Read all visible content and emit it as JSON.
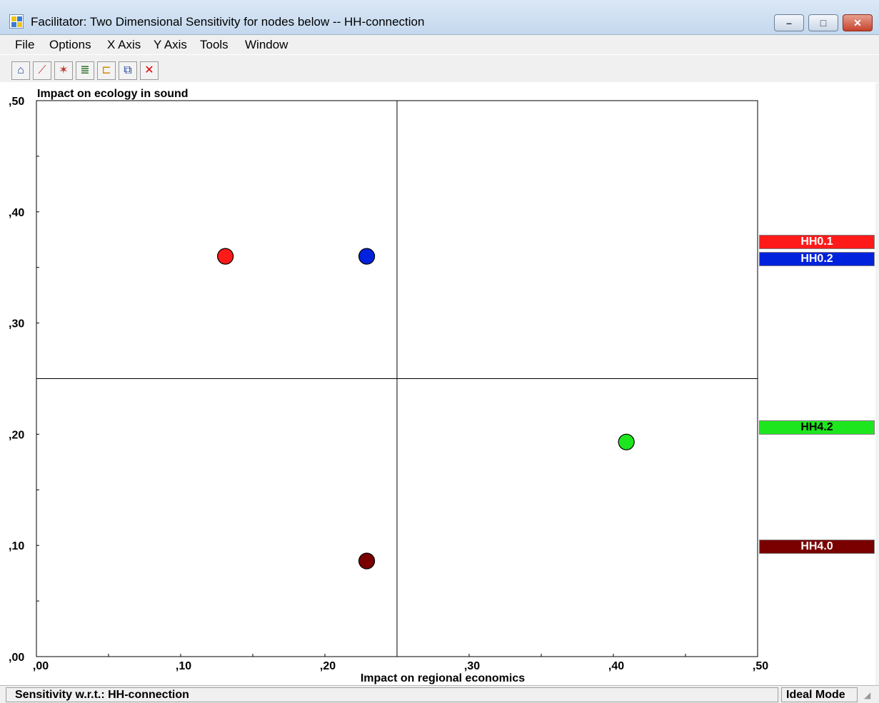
{
  "window": {
    "title": "Facilitator: Two Dimensional  Sensitivity for nodes below -- HH-connection",
    "minimize_glyph": "–",
    "maximize_glyph": "□",
    "close_glyph": "✕"
  },
  "menu": {
    "items": [
      "File",
      "Options",
      "X Axis",
      "Y Axis",
      "Tools",
      "Window"
    ]
  },
  "toolbar": {
    "tools": [
      {
        "name": "home-icon",
        "glyph": "⌂",
        "color": "#1a3fa0"
      },
      {
        "name": "line-graph-icon",
        "glyph": "⟋",
        "color": "#c0392b"
      },
      {
        "name": "crossing-lines-icon",
        "glyph": "✶",
        "color": "#c0392b"
      },
      {
        "name": "stack-icon",
        "glyph": "≣",
        "color": "#2a6f2a"
      },
      {
        "name": "tree-icon",
        "glyph": "⊏",
        "color": "#d08a00"
      },
      {
        "name": "windows-icon",
        "glyph": "⧉",
        "color": "#1a3fa0"
      },
      {
        "name": "close-x-icon",
        "glyph": "✕",
        "color": "#e00000"
      }
    ]
  },
  "chart_data": {
    "type": "scatter",
    "ylabel": "Impact on ecology in sound",
    "xlabel": "Impact on regional economics",
    "xlim": [
      0,
      0.5
    ],
    "ylim": [
      0,
      0.5
    ],
    "x_ticks": [
      {
        "value": 0.0,
        "label": ",00"
      },
      {
        "value": 0.1,
        "label": ",10"
      },
      {
        "value": 0.2,
        "label": ",20"
      },
      {
        "value": 0.3,
        "label": ",30"
      },
      {
        "value": 0.4,
        "label": ",40"
      },
      {
        "value": 0.5,
        "label": ",50"
      }
    ],
    "y_ticks": [
      {
        "value": 0.0,
        "label": ",00"
      },
      {
        "value": 0.1,
        "label": ",10"
      },
      {
        "value": 0.2,
        "label": ",20"
      },
      {
        "value": 0.3,
        "label": ",30"
      },
      {
        "value": 0.4,
        "label": ",40"
      },
      {
        "value": 0.5,
        "label": ",50"
      }
    ],
    "quadrant_dividers": {
      "x": 0.25,
      "y": 0.25
    },
    "series": [
      {
        "name": "HH0.1",
        "x": 0.131,
        "y": 0.36,
        "color": "#ff1a1a",
        "text_color": "#ffffff"
      },
      {
        "name": "HH0.2",
        "x": 0.229,
        "y": 0.36,
        "color": "#0022dd",
        "text_color": "#ffffff"
      },
      {
        "name": "HH4.2",
        "x": 0.409,
        "y": 0.193,
        "color": "#1ee61e",
        "text_color": "#000000"
      },
      {
        "name": "HH4.0",
        "x": 0.229,
        "y": 0.086,
        "color": "#7a0000",
        "text_color": "#ffffff"
      }
    ],
    "legend_placement": "right",
    "grid": false
  },
  "status": {
    "left": "Sensitivity w.r.t.: HH-connection",
    "right": "Ideal Mode"
  }
}
